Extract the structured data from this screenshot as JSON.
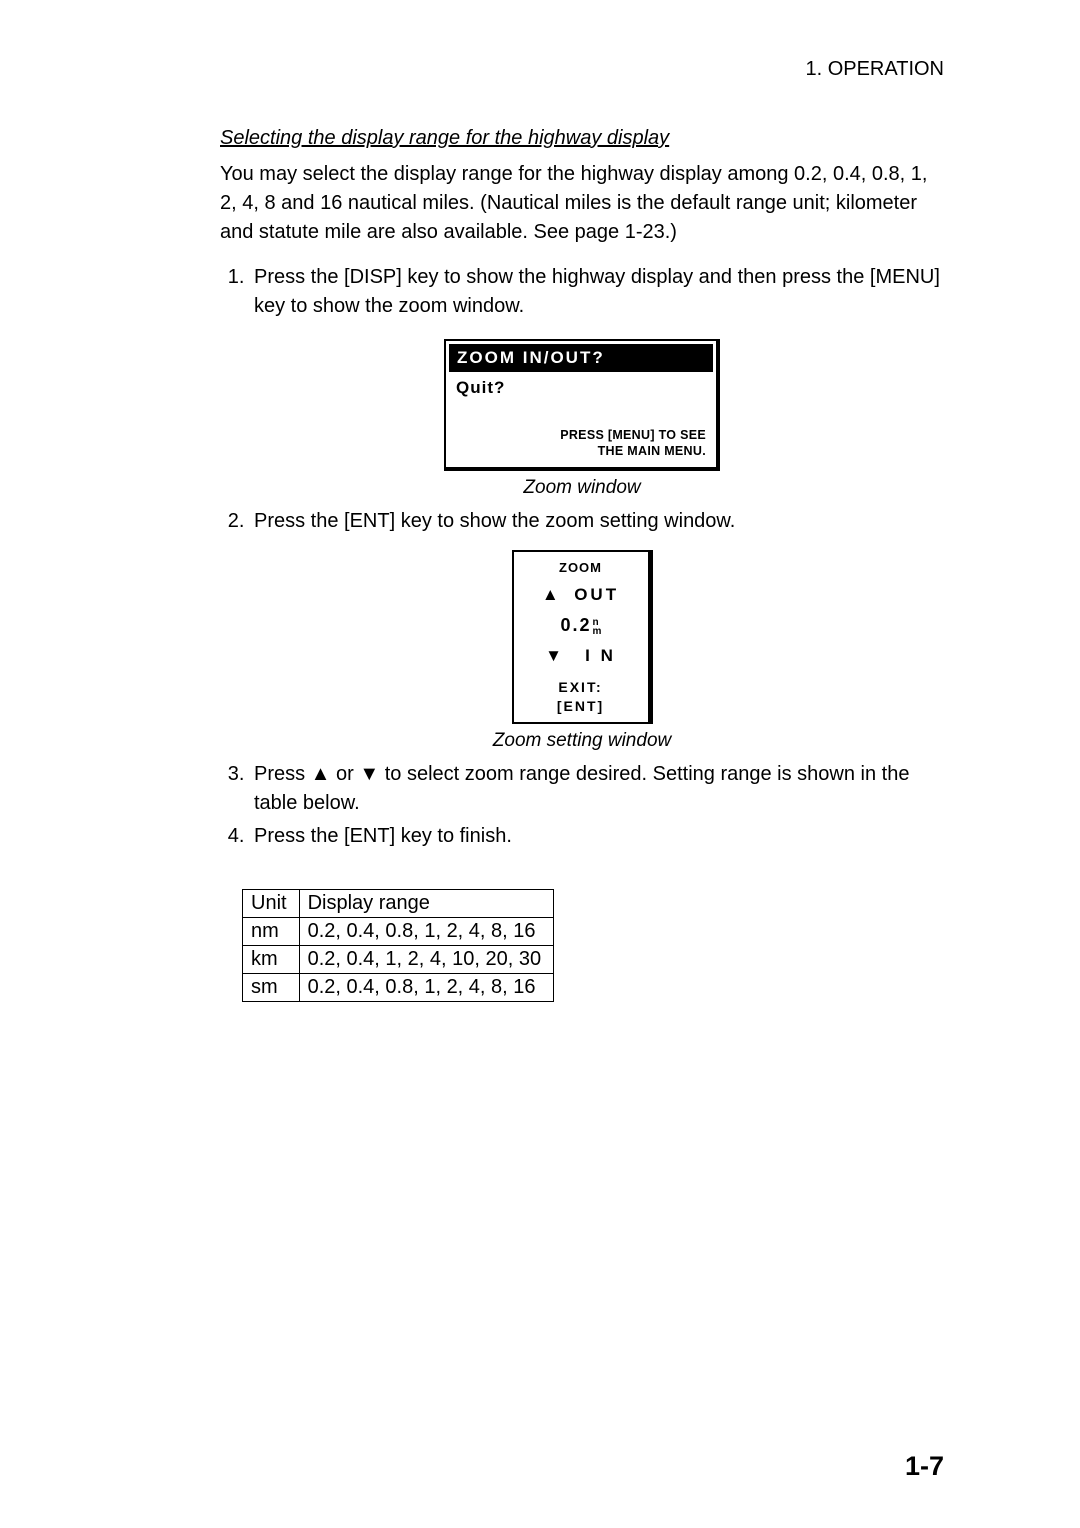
{
  "header": {
    "chapter": "1. OPERATION"
  },
  "section": {
    "title": "Selecting the display range for the highway display"
  },
  "intro": {
    "p1": "You may select the display range for the highway display among 0.2, 0.4, 0.8, 1, 2, 4, 8 and 16 nautical miles. (Nautical miles is the default range unit; kilometer and statute mile are also available. See page 1-23.)"
  },
  "steps_a": {
    "s1": "Press the [DISP] key to show the highway display and then press the [MENU] key to show the zoom window."
  },
  "zoom_window": {
    "title": "ZOOM  IN/OUT?",
    "quit": "Quit?",
    "hint_l1": "PRESS [MENU] TO SEE",
    "hint_l2": "THE MAIN MENU.",
    "caption": "Zoom window"
  },
  "steps_b": {
    "s2": "Press the [ENT] key to show the zoom setting window."
  },
  "zoom_setting": {
    "title": "ZOOM",
    "out": "OUT",
    "value": "0.2",
    "unit_top": "n",
    "unit_bot": "m",
    "in": "I N",
    "exit_l1": "EXIT:",
    "exit_l2": "[ENT]",
    "caption": "Zoom setting window",
    "arrow_up": "▲",
    "arrow_down": "▼"
  },
  "steps_c": {
    "s3": "Press ▲ or ▼ to select zoom range desired. Setting range is shown in the table below.",
    "s4": "Press the [ENT] key to finish."
  },
  "range_table": {
    "col1": "Unit",
    "col2": "Display range",
    "rows": [
      {
        "unit": "nm",
        "range": "0.2, 0.4, 0.8, 1, 2, 4, 8, 16"
      },
      {
        "unit": "km",
        "range": "0.2, 0.4, 1, 2, 4, 10, 20, 30"
      },
      {
        "unit": "sm",
        "range": "0.2, 0.4, 0.8, 1, 2, 4, 8, 16"
      }
    ]
  },
  "page_number": "1-7"
}
